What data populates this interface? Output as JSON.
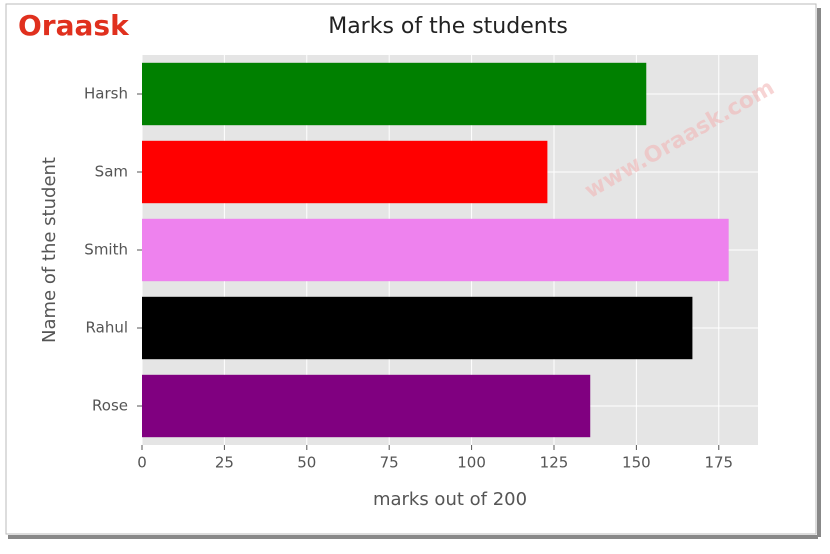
{
  "logo": "Oraask",
  "watermark": "www.Oraask.com",
  "chart_data": {
    "type": "barh",
    "title": "Marks of the students",
    "x_label": "marks out of 200",
    "y_label": "Name of the student",
    "categories": [
      "Rose",
      "Rahul",
      "Smith",
      "Sam",
      "Harsh"
    ],
    "values": [
      136,
      167,
      178,
      123,
      153
    ],
    "colors": [
      "purple",
      "black",
      "violet",
      "red",
      "green"
    ],
    "xlim": [
      0,
      186.9
    ],
    "xticks": [
      0,
      25,
      50,
      75,
      100,
      125,
      150,
      175
    ],
    "grid": true
  }
}
